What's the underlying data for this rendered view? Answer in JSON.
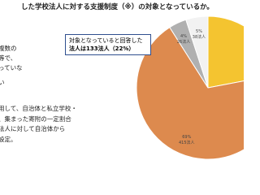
{
  "header": {
    "title": "した学校法人に対する支援制度（※）の対象となっているか。"
  },
  "body": {
    "lines_top": [
      "複数の",
      "等で、",
      "っていな",
      "い"
    ],
    "lines_bottom": [
      "用して、自治体と私立学校・",
      "、集まった寄附の一定割合",
      "法人に対して自治体から",
      "設定。"
    ]
  },
  "callout": {
    "lines": [
      "対象となっていると回答した",
      "法人は133法人（22%）"
    ]
  },
  "pie": {
    "slices": [
      {
        "value": 22,
        "color": "#f4c430"
      },
      {
        "value": 69,
        "color": "#dd8a4e",
        "value_label": "69%",
        "count_label": "415法人"
      },
      {
        "value": 4,
        "color": "#b0b0b0",
        "value_label": "4%",
        "count_label": "26法人"
      },
      {
        "value": 5,
        "color": "#f2f2f2",
        "value_label": "5%",
        "count_label": "38法人"
      }
    ]
  }
}
